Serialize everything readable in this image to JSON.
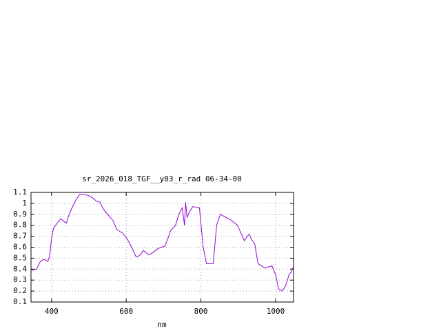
{
  "chart_data": {
    "type": "line",
    "title": "sr_2026_018_TGF__y03_r_rad 06-34-00",
    "x_label": "nm",
    "xlim": [
      345,
      1048
    ],
    "xticks": [
      400,
      600,
      800,
      1000
    ],
    "ylim": [
      0.1,
      1.1
    ],
    "yticks": [
      1.1,
      1,
      0.9,
      0.8,
      0.7,
      0.6,
      0.5,
      0.4,
      0.3,
      0.2,
      0.1
    ],
    "grid": true,
    "series": [
      {
        "color": "#9400d3",
        "x": [
          345,
          360,
          370,
          380,
          390,
          395,
          400,
          405,
          415,
          425,
          435,
          440,
          445,
          455,
          465,
          475,
          490,
          500,
          510,
          520,
          530,
          538,
          550,
          565,
          575,
          590,
          600,
          610,
          620,
          625,
          630,
          640,
          645,
          650,
          660,
          671,
          686,
          704,
          719,
          732,
          741,
          750,
          756,
          759,
          763,
          769,
          778,
          796,
          806,
          815,
          833,
          842,
          852,
          879,
          898,
          916,
          922,
          929,
          936,
          944,
          953,
          971,
          990,
          1000,
          1008,
          1018,
          1027,
          1036,
          1043,
          1048
        ],
        "values": [
          0.39,
          0.4,
          0.47,
          0.49,
          0.47,
          0.52,
          0.68,
          0.77,
          0.82,
          0.86,
          0.83,
          0.82,
          0.88,
          0.96,
          1.03,
          1.08,
          1.08,
          1.07,
          1.05,
          1.02,
          1.01,
          0.95,
          0.9,
          0.84,
          0.76,
          0.73,
          0.69,
          0.63,
          0.56,
          0.52,
          0.51,
          0.54,
          0.57,
          0.56,
          0.53,
          0.55,
          0.59,
          0.61,
          0.75,
          0.8,
          0.9,
          0.96,
          0.8,
          1.01,
          0.87,
          0.92,
          0.97,
          0.96,
          0.6,
          0.45,
          0.45,
          0.8,
          0.9,
          0.85,
          0.8,
          0.66,
          0.69,
          0.72,
          0.67,
          0.63,
          0.45,
          0.41,
          0.43,
          0.35,
          0.22,
          0.2,
          0.25,
          0.35,
          0.38,
          0.43
        ]
      }
    ]
  }
}
